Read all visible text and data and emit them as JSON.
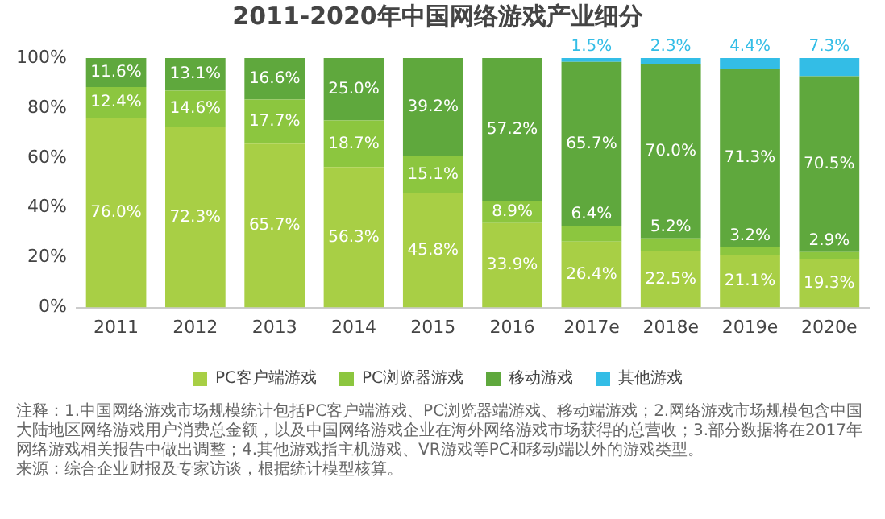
{
  "chart_data": {
    "type": "bar",
    "title": "2011-2020年中国网络游戏产业细分",
    "stacked": true,
    "categories": [
      "2011",
      "2012",
      "2013",
      "2014",
      "2015",
      "2016",
      "2017e",
      "2018e",
      "2019e",
      "2020e"
    ],
    "series": [
      {
        "name": "PC客户端游戏",
        "color": "#a8cf45",
        "values": [
          76.0,
          72.3,
          65.7,
          56.3,
          45.8,
          33.9,
          26.4,
          22.5,
          21.1,
          19.3
        ],
        "value_labels": [
          "76.0%",
          "72.3%",
          "65.7%",
          "56.3%",
          "45.8%",
          "33.9%",
          "26.4%",
          "22.5%",
          "21.1%",
          "19.3%"
        ]
      },
      {
        "name": "PC浏览器游戏",
        "color": "#8cc63f",
        "values": [
          12.4,
          14.6,
          17.7,
          18.7,
          15.1,
          8.9,
          6.4,
          5.2,
          3.2,
          2.9
        ],
        "value_labels": [
          "12.4%",
          "14.6%",
          "17.7%",
          "18.7%",
          "15.1%",
          "8.9%",
          "6.4%",
          "5.2%",
          "3.2%",
          "2.9%"
        ]
      },
      {
        "name": "移动游戏",
        "color": "#5fa83d",
        "values": [
          11.6,
          13.1,
          16.6,
          25.0,
          39.2,
          57.2,
          65.7,
          70.0,
          71.3,
          70.5
        ],
        "value_labels": [
          "11.6%",
          "13.1%",
          "16.6%",
          "25.0%",
          "39.2%",
          "57.2%",
          "65.7%",
          "70.0%",
          "71.3%",
          "70.5%"
        ]
      },
      {
        "name": "其他游戏",
        "color": "#33bde6",
        "values": [
          null,
          null,
          null,
          null,
          null,
          null,
          1.5,
          2.3,
          4.4,
          7.3
        ],
        "value_labels": [
          null,
          null,
          null,
          null,
          null,
          null,
          "1.5%",
          "2.3%",
          "4.4%",
          "7.3%"
        ]
      }
    ],
    "ylim": [
      0,
      100
    ],
    "yticks": [
      {
        "value": 0,
        "label": "0%"
      },
      {
        "value": 20,
        "label": "20%"
      },
      {
        "value": 40,
        "label": "40%"
      },
      {
        "value": 60,
        "label": "60%"
      },
      {
        "value": 80,
        "label": "80%"
      },
      {
        "value": 100,
        "label": "100%"
      }
    ],
    "grid": false,
    "legend": "bottom",
    "annotations": [
      "注释：1.中国网络游戏市场规模统计包括PC客户端游戏、PC浏览器端游戏、移动端游戏；2.网络游戏市场规模包含中国大陆地区网络游戏用户消费总金额，以及中国网络游戏企业在海外网络游戏市场获得的总营收；3.部分数据将在2017年网络游戏相关报告中做出调整；4.其他游戏指主机游戏、VR游戏等PC和移动端以外的游戏类型。",
      "来源：综合企业财报及专家访谈，根据统计模型核算。"
    ]
  }
}
